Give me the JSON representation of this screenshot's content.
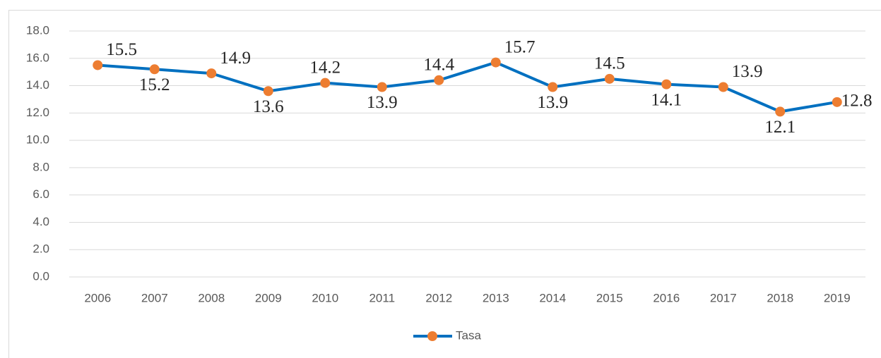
{
  "chart_data": {
    "type": "line",
    "categories": [
      "2006",
      "2007",
      "2008",
      "2009",
      "2010",
      "2011",
      "2012",
      "2013",
      "2014",
      "2015",
      "2016",
      "2017",
      "2018",
      "2019"
    ],
    "series": [
      {
        "name": "Tasa",
        "color": "#0070c0",
        "marker_color": "#ed7d31",
        "values": [
          15.5,
          15.2,
          14.9,
          13.6,
          14.2,
          13.9,
          14.4,
          15.7,
          13.9,
          14.5,
          14.1,
          13.9,
          12.1,
          12.8
        ]
      }
    ],
    "ylim": [
      0,
      18
    ],
    "yticks": [
      {
        "value": 0,
        "label": "0.0"
      },
      {
        "value": 2,
        "label": "2.0"
      },
      {
        "value": 4,
        "label": "4.0"
      },
      {
        "value": 6,
        "label": "6.0"
      },
      {
        "value": 8,
        "label": "8.0"
      },
      {
        "value": 10,
        "label": "10.0"
      },
      {
        "value": 12,
        "label": "12.0"
      },
      {
        "value": 14,
        "label": "14.0"
      },
      {
        "value": 16,
        "label": "16.0"
      },
      {
        "value": 18,
        "label": "18.0"
      }
    ],
    "grid": true,
    "legend": "bottom"
  }
}
